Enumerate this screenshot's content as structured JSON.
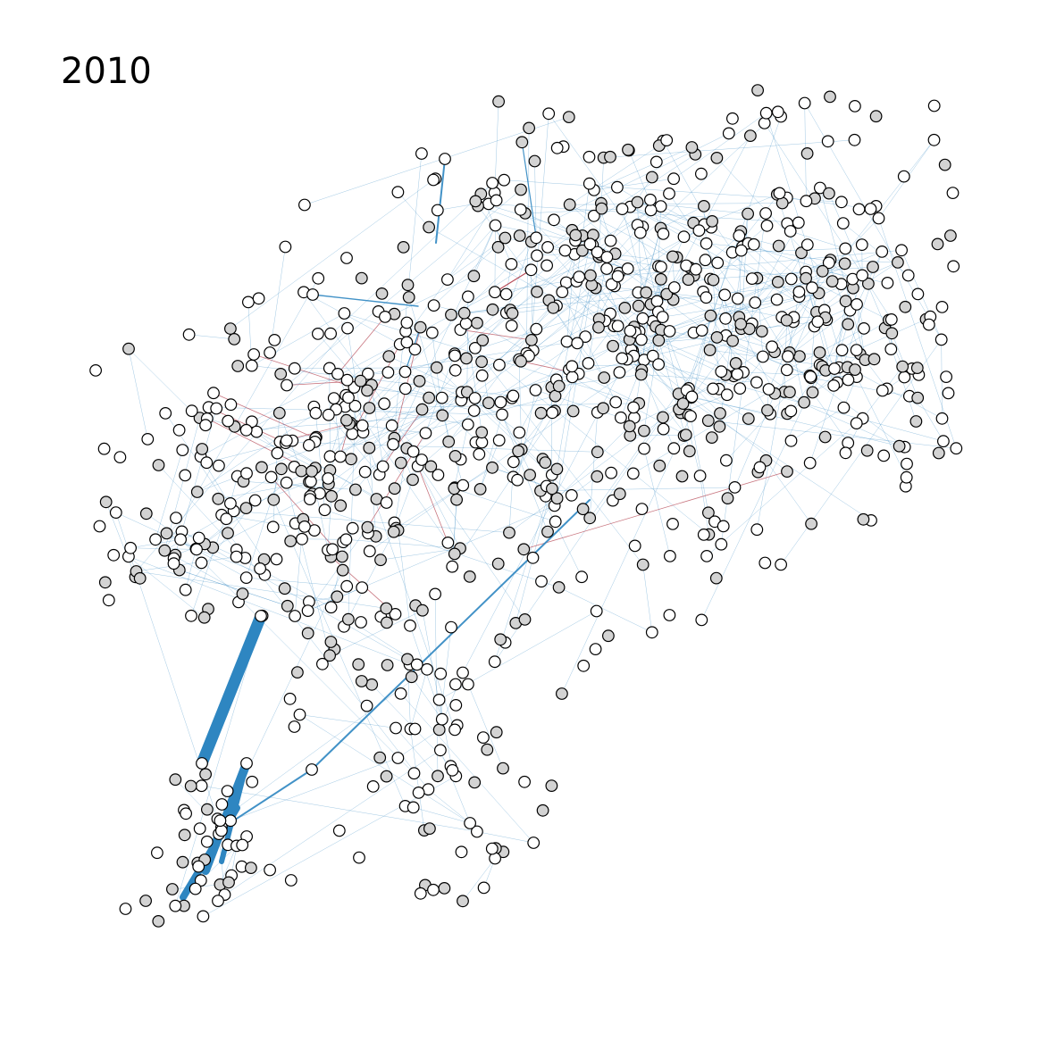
{
  "figure": {
    "year_label": "2010"
  },
  "style": {
    "background": "#ffffff",
    "edge_blue": "#2e86c1",
    "edge_red": "#b03a48",
    "node_white_fill": "#ffffff",
    "node_gray_fill": "#d3d3d3",
    "node_stroke": "#000000"
  },
  "legend": {
    "node_categories": [
      "white",
      "gray"
    ],
    "edge_categories": [
      "blue",
      "red"
    ]
  }
}
